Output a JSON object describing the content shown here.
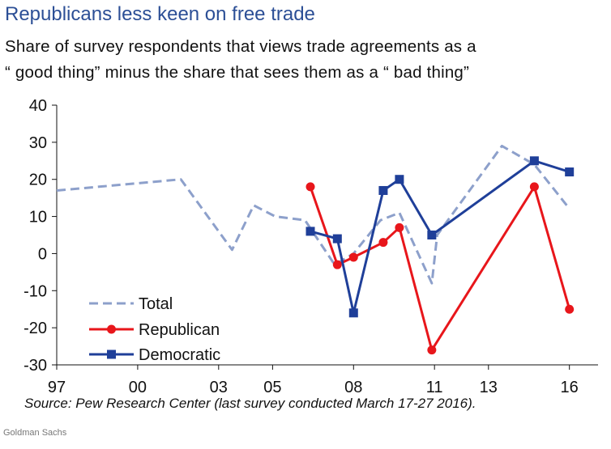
{
  "title": "Republicans less keen on free trade",
  "subtitle_line1": "Share of survey respondents that views trade agreements as a",
  "subtitle_line2": "“ good thing”  minus the share that sees them as a “ bad thing”",
  "source": "Source: Pew Research Center (last survey conducted March 17-27 2016).",
  "brand": "Goldman Sachs",
  "chart_data": {
    "type": "line",
    "ylim": [
      -30,
      40
    ],
    "yticks": [
      40,
      30,
      20,
      10,
      0,
      -10,
      -20,
      -30
    ],
    "xlim": [
      1997.0,
      2016.4
    ],
    "xticks": [
      {
        "label": "97",
        "value": 1997.0
      },
      {
        "label": "00",
        "value": 2000.0
      },
      {
        "label": "03",
        "value": 2003.0
      },
      {
        "label": "05",
        "value": 2005.0
      },
      {
        "label": "08",
        "value": 2008.0
      },
      {
        "label": "11",
        "value": 2011.0
      },
      {
        "label": "13",
        "value": 2013.0
      },
      {
        "label": "16",
        "value": 2016.0
      }
    ],
    "grid": false,
    "legend_position": "bottom-left",
    "series": [
      {
        "name": "Total",
        "color": "#8da0cb",
        "style": "dashed",
        "marker": "none",
        "x": [
          1997.0,
          2001.6,
          2003.5,
          2004.3,
          2005.1,
          2006.2,
          2007.3,
          2008.0,
          2009.0,
          2009.7,
          2010.9,
          2011.1,
          2013.5,
          2014.7,
          2015.9
        ],
        "y": [
          17,
          20,
          1,
          13,
          10,
          9,
          -3,
          0,
          9,
          11,
          -8,
          5,
          29,
          24,
          13
        ]
      },
      {
        "name": "Republican",
        "color": "#e8161b",
        "style": "solid",
        "marker": "circle",
        "x": [
          2006.4,
          2007.4,
          2008.0,
          2009.1,
          2009.7,
          2010.9,
          2014.7,
          2016.0
        ],
        "y": [
          18,
          -3,
          -1,
          3,
          7,
          -26,
          18,
          -15
        ]
      },
      {
        "name": "Democratic",
        "color": "#1f3f99",
        "style": "solid",
        "marker": "square",
        "x": [
          2006.4,
          2007.4,
          2008.0,
          2009.1,
          2009.7,
          2010.9,
          2014.7,
          2016.0
        ],
        "y": [
          6,
          4,
          -16,
          17,
          20,
          5,
          25,
          22
        ]
      }
    ]
  }
}
